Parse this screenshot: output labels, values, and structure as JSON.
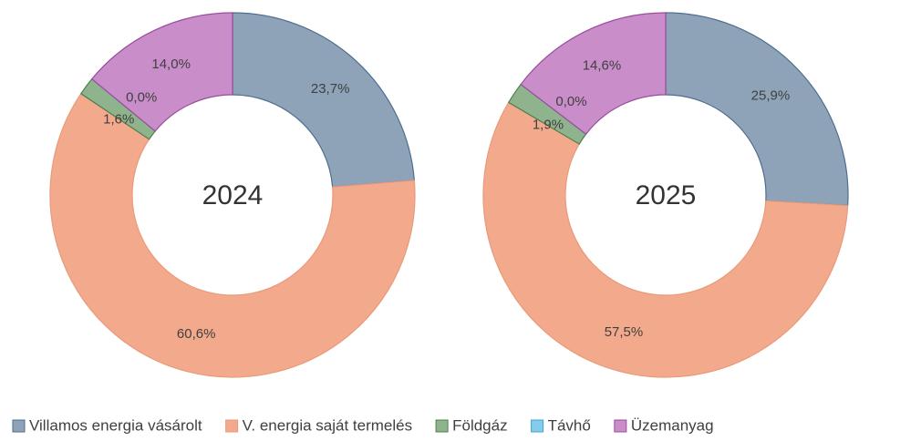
{
  "legend": {
    "categories": [
      "Villamos energia vásárolt",
      "V. energia saját termelés",
      "Földgáz",
      "Távhő",
      "Üzemanyag"
    ],
    "colors": [
      "#8ea3b8",
      "#f3a98c",
      "#8fb38c",
      "#86cbe8",
      "#c98dc9"
    ]
  },
  "chart_data": [
    {
      "type": "donut",
      "title": "2024",
      "values": [
        23.7,
        60.6,
        1.6,
        0.0,
        14.0
      ],
      "value_labels": [
        "23,7%",
        "60,6%",
        "1,6%",
        "0,0%",
        "14,0%"
      ]
    },
    {
      "type": "donut",
      "title": "2025",
      "values": [
        25.9,
        57.5,
        1.9,
        0.0,
        14.6
      ],
      "value_labels": [
        "25,9%",
        "57,5%",
        "1,9%",
        "0,0%",
        "14,6%"
      ]
    }
  ]
}
